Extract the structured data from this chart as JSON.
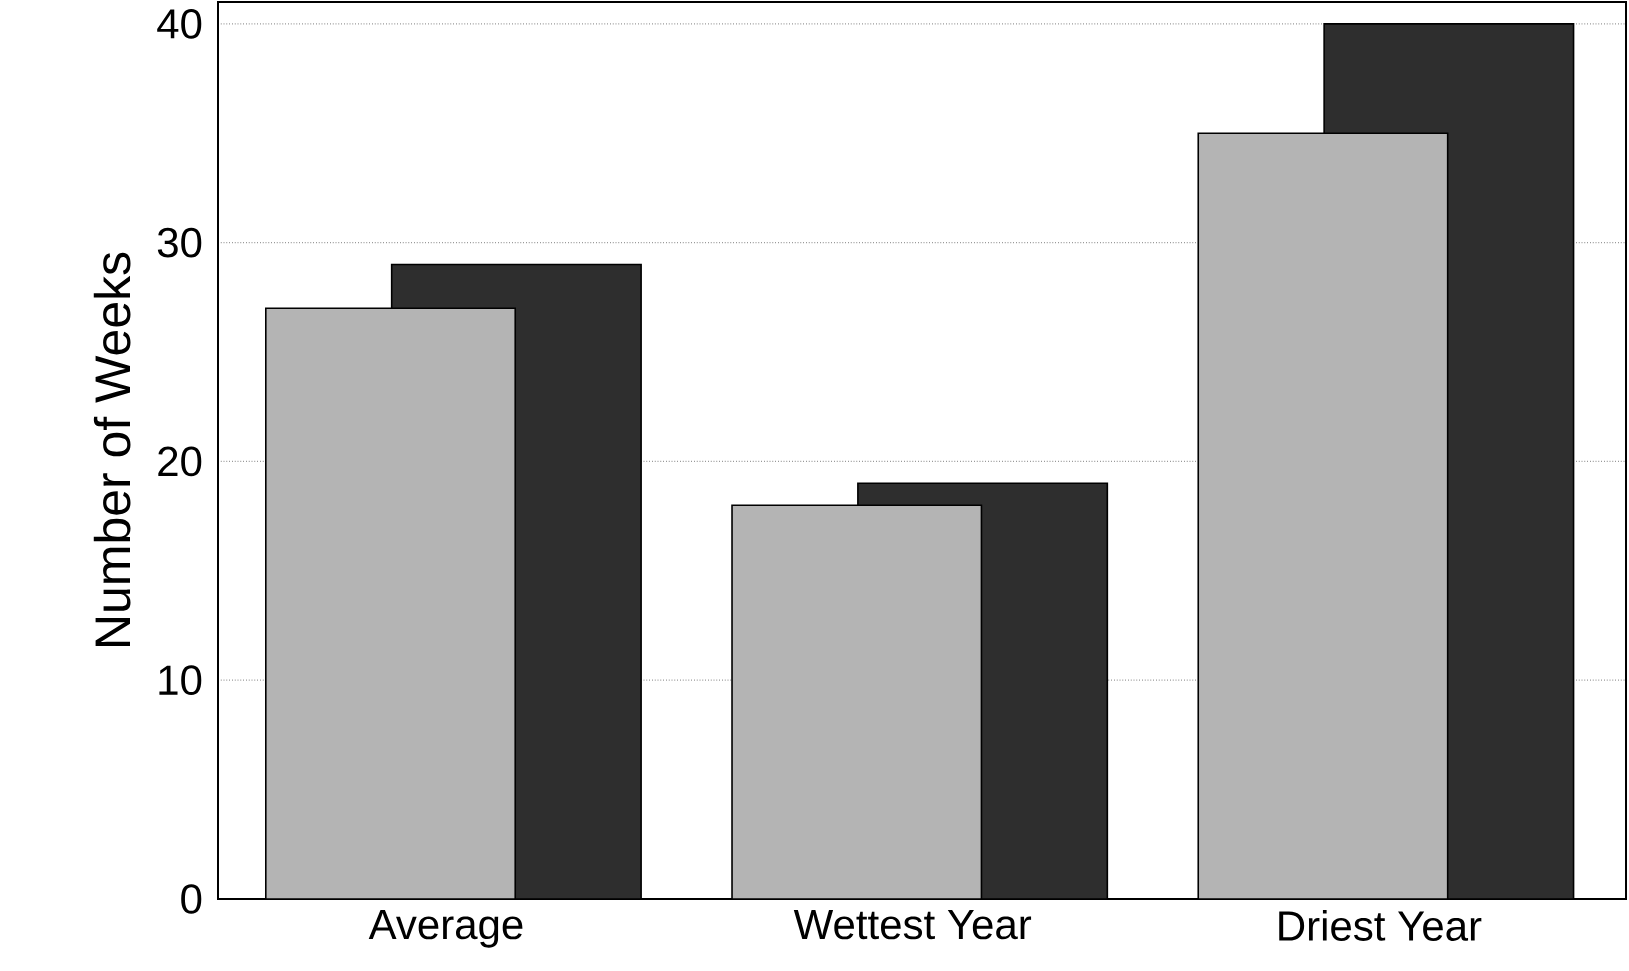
{
  "chart_data": {
    "type": "bar",
    "ylabel": "Number of Weeks",
    "categories": [
      "Average",
      "Wettest Year",
      "Driest Year"
    ],
    "series": [
      {
        "color": "#b4b4b4",
        "values": [
          27,
          18,
          35
        ]
      },
      {
        "color": "#2e2e2e",
        "values": [
          29,
          19,
          40
        ]
      }
    ],
    "ylim": [
      0,
      41
    ],
    "yticks": [
      0,
      10,
      20,
      30,
      40
    ],
    "grid": "y"
  }
}
